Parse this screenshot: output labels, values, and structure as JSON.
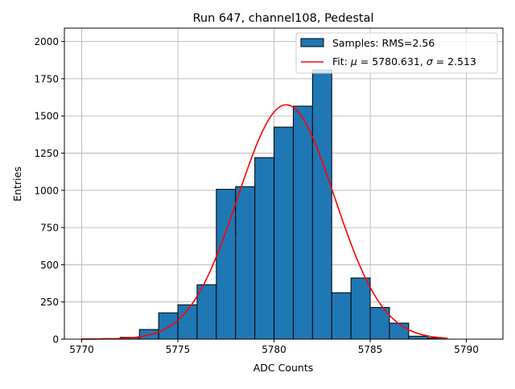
{
  "chart_data": {
    "type": "bar",
    "title": "Run 647, channel108, Pedestal",
    "xlabel": "ADC Counts",
    "ylabel": "Entries",
    "xlim": [
      5769.1,
      5791.9
    ],
    "ylim": [
      0,
      2090
    ],
    "grid": true,
    "legend_placement": "top-right",
    "bin_width": 1,
    "bin_edges_start": [
      5770,
      5771,
      5772,
      5773,
      5774,
      5775,
      5776,
      5777,
      5778,
      5779,
      5780,
      5781,
      5782,
      5783,
      5784,
      5785,
      5786,
      5787,
      5788
    ],
    "values": [
      2,
      4,
      12,
      65,
      177,
      231,
      366,
      1007,
      1025,
      1220,
      1425,
      1566,
      1809,
      312,
      411,
      213,
      108,
      20,
      8
    ],
    "xticks": [
      5770,
      5775,
      5780,
      5785,
      5790
    ],
    "yticks": [
      0,
      250,
      500,
      750,
      1000,
      1250,
      1500,
      1750,
      2000
    ],
    "series": [
      {
        "name": "Samples: RMS=2.56",
        "kind": "histogram",
        "color": "#1f77b4"
      },
      {
        "name_prefix": "Fit: ",
        "name": "Fit: μ = 5780.631, σ = 2.513",
        "kind": "gaussian",
        "color": "#ff0000",
        "mu": 5780.631,
        "sigma": 2.513,
        "amplitude": 1575,
        "x_range": [
          5770,
          5789
        ]
      }
    ],
    "legend": {
      "hist_label": "Samples: RMS=2.56",
      "fit_label_a": "Fit: ",
      "fit_mu": "μ",
      "fit_mid": " = 5780.631, ",
      "fit_sigma": "σ",
      "fit_end": " = 2.513"
    }
  }
}
